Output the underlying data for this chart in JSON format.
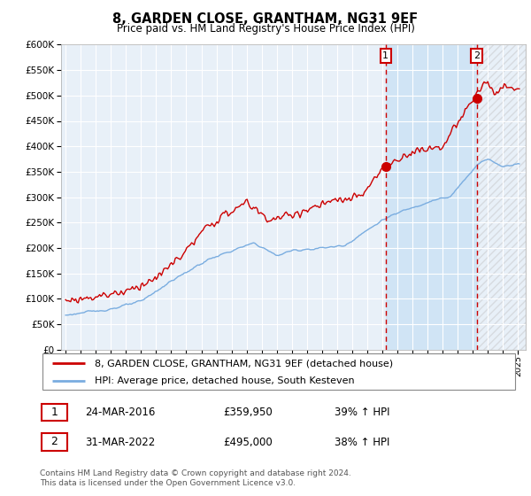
{
  "title": "8, GARDEN CLOSE, GRANTHAM, NG31 9EF",
  "subtitle": "Price paid vs. HM Land Registry's House Price Index (HPI)",
  "legend_line1": "8, GARDEN CLOSE, GRANTHAM, NG31 9EF (detached house)",
  "legend_line2": "HPI: Average price, detached house, South Kesteven",
  "footnote": "Contains HM Land Registry data © Crown copyright and database right 2024.\nThis data is licensed under the Open Government Licence v3.0.",
  "sale1_date": "24-MAR-2016",
  "sale1_price": "£359,950",
  "sale1_hpi": "39% ↑ HPI",
  "sale2_date": "31-MAR-2022",
  "sale2_price": "£495,000",
  "sale2_hpi": "38% ↑ HPI",
  "sale1_year": 2016.22,
  "sale2_year": 2022.25,
  "sale1_value": 359950,
  "sale2_value": 495000,
  "red_color": "#cc0000",
  "blue_color": "#7aade0",
  "bg_color": "#e8f0f8",
  "shade_color": "#d0e4f5",
  "grid_color": "#cccccc",
  "ylim_max": 600000,
  "xlim_left": 1994.7,
  "xlim_right": 2025.5
}
